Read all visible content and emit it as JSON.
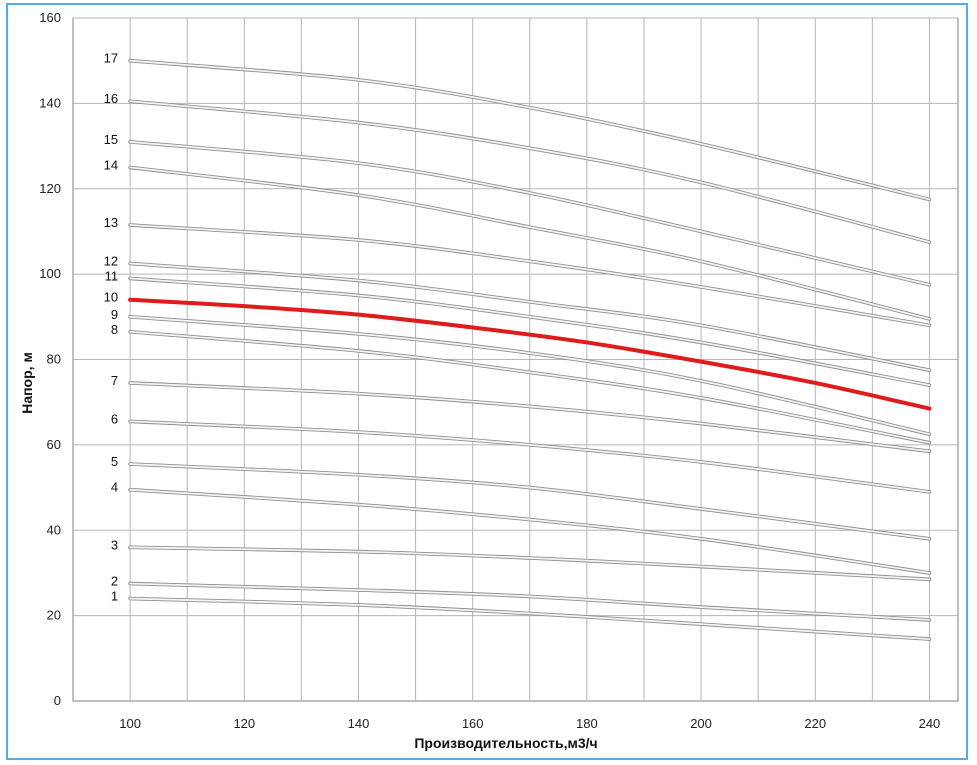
{
  "chart_data": {
    "type": "line",
    "title": "",
    "xlabel": "Производительность,м3/ч",
    "ylabel": "Напор, м",
    "xlim": [
      90,
      245
    ],
    "ylim": [
      0,
      160
    ],
    "x_ticks": [
      "100",
      "120",
      "140",
      "160",
      "180",
      "200",
      "220",
      "240"
    ],
    "y_ticks": [
      "0",
      "20",
      "40",
      "60",
      "80",
      "100",
      "120",
      "140",
      "160"
    ],
    "grid": true,
    "highlight_color": "#e01b1b",
    "line_color": "#c8c8c8",
    "series": [
      {
        "name": "1",
        "x": [
          100,
          140,
          170,
          200,
          240
        ],
        "y": [
          24,
          22.5,
          20.5,
          18,
          14.5
        ],
        "highlight": false
      },
      {
        "name": "2",
        "x": [
          100,
          140,
          170,
          200,
          240
        ],
        "y": [
          27.5,
          26,
          24.5,
          22,
          19
        ],
        "highlight": false
      },
      {
        "name": "3",
        "x": [
          100,
          140,
          170,
          200,
          240
        ],
        "y": [
          36,
          35,
          33.5,
          31.5,
          28.5
        ],
        "highlight": false
      },
      {
        "name": "4",
        "x": [
          100,
          140,
          170,
          200,
          240
        ],
        "y": [
          49.5,
          46,
          42.5,
          38,
          30
        ],
        "highlight": false
      },
      {
        "name": "5",
        "x": [
          100,
          140,
          170,
          200,
          240
        ],
        "y": [
          55.5,
          53,
          50,
          45,
          38
        ],
        "highlight": false
      },
      {
        "name": "6",
        "x": [
          100,
          140,
          170,
          200,
          240
        ],
        "y": [
          65.5,
          63,
          60,
          56,
          49
        ],
        "highlight": false
      },
      {
        "name": "7",
        "x": [
          100,
          140,
          170,
          200,
          240
        ],
        "y": [
          74.5,
          72,
          69,
          65,
          58.5
        ],
        "highlight": false
      },
      {
        "name": "8",
        "x": [
          100,
          140,
          170,
          200,
          240
        ],
        "y": [
          86.5,
          82,
          77,
          71,
          60.5
        ],
        "highlight": false
      },
      {
        "name": "9",
        "x": [
          100,
          140,
          170,
          200,
          240
        ],
        "y": [
          90,
          86,
          81.5,
          75,
          62.5
        ],
        "highlight": false
      },
      {
        "name": "10",
        "x": [
          100,
          120,
          140,
          160,
          180,
          200,
          220,
          240
        ],
        "y": [
          94,
          92.5,
          90.5,
          87.5,
          84,
          79.5,
          74.5,
          68.5
        ],
        "highlight": true
      },
      {
        "name": "11",
        "x": [
          100,
          140,
          170,
          200,
          240
        ],
        "y": [
          99,
          95,
          90,
          84,
          74
        ],
        "highlight": false
      },
      {
        "name": "12",
        "x": [
          100,
          140,
          170,
          200,
          240
        ],
        "y": [
          102.5,
          98.5,
          93.5,
          88,
          77.5
        ],
        "highlight": false
      },
      {
        "name": "13",
        "x": [
          100,
          140,
          170,
          200,
          240
        ],
        "y": [
          111.5,
          108,
          103,
          97,
          88
        ],
        "highlight": false
      },
      {
        "name": "14",
        "x": [
          100,
          140,
          170,
          200,
          240
        ],
        "y": [
          125,
          118.5,
          111,
          103,
          89.5
        ],
        "highlight": false
      },
      {
        "name": "15",
        "x": [
          100,
          140,
          170,
          200,
          240
        ],
        "y": [
          131,
          126,
          119,
          110,
          97.5
        ],
        "highlight": false
      },
      {
        "name": "16",
        "x": [
          100,
          140,
          170,
          200,
          240
        ],
        "y": [
          140.5,
          135.5,
          129.5,
          121.5,
          107.5
        ],
        "highlight": false
      },
      {
        "name": "17",
        "x": [
          100,
          140,
          170,
          200,
          240
        ],
        "y": [
          150,
          145.5,
          139,
          130.5,
          117.5
        ],
        "highlight": false
      }
    ]
  }
}
